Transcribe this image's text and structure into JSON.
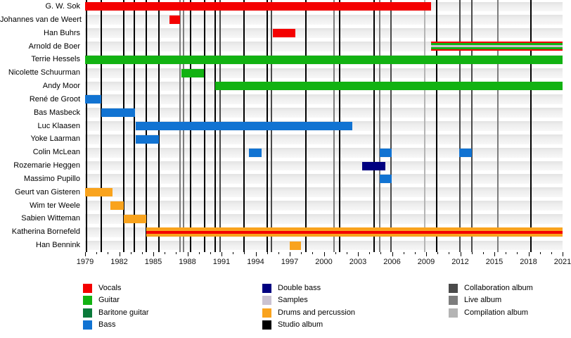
{
  "colors": {
    "vocals": "#f40000",
    "guitar": "#12b212",
    "baritone_guitar": "#0a7a3a",
    "bass": "#1173d2",
    "double_bass": "#000080",
    "samples": "#cbc3d2",
    "drums": "#f9a31d",
    "studio": "#000000",
    "collaboration": "#4a4a4a",
    "live": "#7d7d7d",
    "compilation": "#b4b4b4"
  },
  "chart_data": {
    "type": "timeline",
    "x_axis": {
      "range": [
        1979,
        2021
      ],
      "major_tick_years": [
        1979,
        1982,
        1985,
        1988,
        1991,
        1994,
        1997,
        2000,
        2003,
        2006,
        2009,
        2012,
        2015,
        2018,
        2021
      ],
      "minor_tick_step": 1
    },
    "members": [
      {
        "name": "G. W. Sok",
        "segments": [
          {
            "roles": [
              "vocals"
            ],
            "start": 1979.0,
            "end": 2009.45
          }
        ]
      },
      {
        "name": "Johannes van de Weert",
        "segments": [
          {
            "roles": [
              "vocals"
            ],
            "start": 1986.4,
            "end": 1987.35
          }
        ]
      },
      {
        "name": "Han Buhrs",
        "segments": [
          {
            "roles": [
              "vocals"
            ],
            "start": 1995.5,
            "end": 1997.5
          }
        ]
      },
      {
        "name": "Arnold de Boer",
        "segments": [
          {
            "roles": [
              "vocals",
              "guitar",
              "samples"
            ],
            "start": 2009.45,
            "end": 2021.0
          }
        ]
      },
      {
        "name": "Terrie Hessels",
        "segments": [
          {
            "roles": [
              "guitar"
            ],
            "start": 1979.0,
            "end": 2021.0
          }
        ]
      },
      {
        "name": "Nicolette Schuurman",
        "segments": [
          {
            "roles": [
              "guitar"
            ],
            "start": 1987.5,
            "end": 1989.45
          }
        ]
      },
      {
        "name": "Andy Moor",
        "segments": [
          {
            "roles": [
              "guitar"
            ],
            "start": 1990.45,
            "end": 2021.0
          }
        ]
      },
      {
        "name": "René de Groot",
        "segments": [
          {
            "roles": [
              "bass"
            ],
            "start": 1979.0,
            "end": 1980.4
          }
        ]
      },
      {
        "name": "Bas Masbeck",
        "segments": [
          {
            "roles": [
              "bass"
            ],
            "start": 1980.4,
            "end": 1983.4
          }
        ]
      },
      {
        "name": "Luc Klaasen",
        "segments": [
          {
            "roles": [
              "bass"
            ],
            "start": 1983.45,
            "end": 2002.5
          }
        ]
      },
      {
        "name": "Yoke Laarman",
        "segments": [
          {
            "roles": [
              "bass"
            ],
            "start": 1983.45,
            "end": 1985.5
          }
        ]
      },
      {
        "name": "Colin McLean",
        "segments": [
          {
            "roles": [
              "bass"
            ],
            "start": 1993.4,
            "end": 1994.5
          },
          {
            "roles": [
              "bass"
            ],
            "start": 2004.9,
            "end": 2006.0
          },
          {
            "roles": [
              "bass"
            ],
            "start": 2011.9,
            "end": 2013.0
          }
        ]
      },
      {
        "name": "Rozemarie Heggen",
        "segments": [
          {
            "roles": [
              "double_bass"
            ],
            "start": 2003.4,
            "end": 2005.4
          }
        ]
      },
      {
        "name": "Massimo Pupillo",
        "segments": [
          {
            "roles": [
              "bass"
            ],
            "start": 2004.9,
            "end": 2006.0
          }
        ]
      },
      {
        "name": "Geurt van Gisteren",
        "segments": [
          {
            "roles": [
              "drums"
            ],
            "start": 1979.0,
            "end": 1981.4
          }
        ]
      },
      {
        "name": "Wim ter Weele",
        "segments": [
          {
            "roles": [
              "drums"
            ],
            "start": 1981.2,
            "end": 1982.4
          }
        ]
      },
      {
        "name": "Sabien Witteman",
        "segments": [
          {
            "roles": [
              "drums"
            ],
            "start": 1982.4,
            "end": 1984.4
          }
        ]
      },
      {
        "name": "Katherina Bornefeld",
        "segments": [
          {
            "roles": [
              "drums",
              "vocals"
            ],
            "start": 1984.4,
            "end": 2021.0
          }
        ]
      },
      {
        "name": "Han Bennink",
        "segments": [
          {
            "roles": [
              "drums"
            ],
            "start": 1997.0,
            "end": 1998.0
          }
        ]
      }
    ],
    "album_lines": [
      {
        "year": 1979.1,
        "type": "studio"
      },
      {
        "year": 1980.4,
        "type": "studio"
      },
      {
        "year": 1982.4,
        "type": "studio"
      },
      {
        "year": 1983.3,
        "type": "studio"
      },
      {
        "year": 1984.4,
        "type": "studio"
      },
      {
        "year": 1985.5,
        "type": "studio"
      },
      {
        "year": 1987.35,
        "type": "live"
      },
      {
        "year": 1987.65,
        "type": "live"
      },
      {
        "year": 1988.3,
        "type": "studio"
      },
      {
        "year": 1989.5,
        "type": "studio"
      },
      {
        "year": 1990.45,
        "type": "studio"
      },
      {
        "year": 1990.85,
        "type": "collaboration"
      },
      {
        "year": 1992.95,
        "type": "studio"
      },
      {
        "year": 1995.0,
        "type": "studio"
      },
      {
        "year": 1995.4,
        "type": "collaboration"
      },
      {
        "year": 1998.4,
        "type": "studio"
      },
      {
        "year": 2000.9,
        "type": "live"
      },
      {
        "year": 2001.4,
        "type": "studio"
      },
      {
        "year": 2004.4,
        "type": "studio"
      },
      {
        "year": 2004.9,
        "type": "live"
      },
      {
        "year": 2005.9,
        "type": "collaboration"
      },
      {
        "year": 2008.9,
        "type": "compilation"
      },
      {
        "year": 2009.9,
        "type": "studio"
      },
      {
        "year": 2011.95,
        "type": "collaboration"
      },
      {
        "year": 2013.0,
        "type": "collaboration"
      },
      {
        "year": 2015.3,
        "type": "live"
      },
      {
        "year": 2018.2,
        "type": "studio"
      }
    ],
    "legend_columns": [
      {
        "items": [
          {
            "label": "Vocals",
            "color_key": "vocals"
          },
          {
            "label": "Guitar",
            "color_key": "guitar"
          },
          {
            "label": "Baritone guitar",
            "color_key": "baritone_guitar"
          },
          {
            "label": "Bass",
            "color_key": "bass"
          }
        ]
      },
      {
        "items": [
          {
            "label": "Double bass",
            "color_key": "double_bass"
          },
          {
            "label": "Samples",
            "color_key": "samples"
          },
          {
            "label": "Drums and percussion",
            "color_key": "drums"
          },
          {
            "label": "Studio album",
            "color_key": "studio"
          }
        ]
      },
      {
        "items": [
          {
            "label": "Collaboration album",
            "color_key": "collaboration"
          },
          {
            "label": "Live album",
            "color_key": "live"
          },
          {
            "label": "Compilation album",
            "color_key": "compilation"
          }
        ]
      }
    ]
  }
}
